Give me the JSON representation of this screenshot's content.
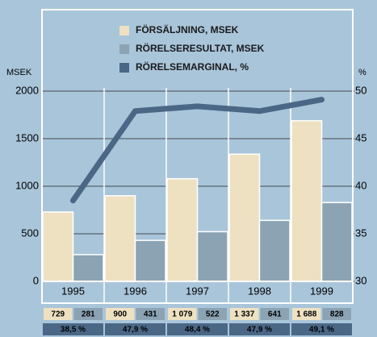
{
  "chart_data": {
    "type": "bar",
    "categories": [
      "1995",
      "1996",
      "1997",
      "1998",
      "1999"
    ],
    "series": [
      {
        "name": "FÖRSÄLJNING, MSEK",
        "color": "#ede1c1",
        "values": [
          729,
          900,
          1079,
          1337,
          1688
        ],
        "value_labels": [
          "729",
          "900",
          "1 079",
          "1 337",
          "1 688"
        ]
      },
      {
        "name": "RÖRELSERESULTAT, MSEK",
        "color": "#8ba3b3",
        "values": [
          281,
          431,
          522,
          641,
          828
        ],
        "value_labels": [
          "281",
          "431",
          "522",
          "641",
          "828"
        ]
      },
      {
        "name": "RÖRELSEMARGINAL, %",
        "color": "#4a6786",
        "values": [
          38.5,
          47.9,
          48.4,
          47.9,
          49.1
        ],
        "value_labels": [
          "38,5 %",
          "47,9 %",
          "48,4 %",
          "47,9 %",
          "49,1 %"
        ],
        "axis": "y2",
        "type": "line"
      }
    ],
    "y_label": "MSEK",
    "y2_label": "%",
    "ylim": [
      0,
      2000
    ],
    "yticks": [
      0,
      500,
      1000,
      1500,
      2000
    ],
    "y2lim": [
      30,
      50
    ],
    "y2ticks": [
      30,
      35,
      40,
      45,
      50
    ],
    "grid": true
  }
}
